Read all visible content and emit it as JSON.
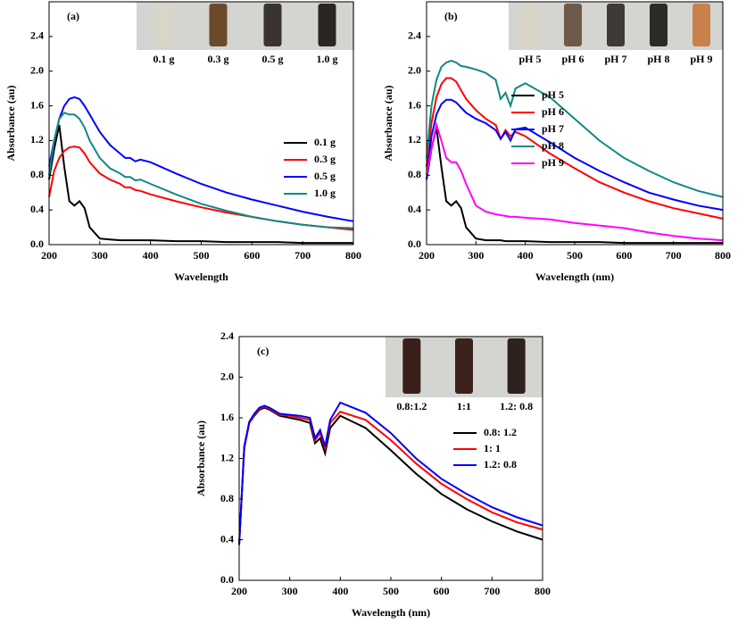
{
  "chart_data": [
    {
      "type": "line",
      "label": "(a)",
      "xlabel": "Wavelength",
      "ylabel": "Absorbance (au)",
      "xlim": [
        200,
        800
      ],
      "ylim": [
        0,
        2.8
      ],
      "xticks": [
        200,
        300,
        400,
        500,
        600,
        700,
        800
      ],
      "yticks": [
        {
          "value": 0,
          "label": "0.0"
        },
        0.4,
        0.8,
        1.2,
        1.6,
        {
          "value": 2,
          "label": "2.0"
        },
        2.4
      ],
      "legend_position": "right",
      "inset_labels": [
        "0.1 g",
        "0.3 g",
        "0.5 g",
        "1.0 g"
      ],
      "inset_colors": [
        "#d9d6c8",
        "#6b4a2a",
        "#3a3430",
        "#2a2624"
      ],
      "x": [
        200,
        210,
        220,
        230,
        240,
        250,
        260,
        270,
        280,
        300,
        320,
        340,
        350,
        360,
        370,
        380,
        400,
        450,
        500,
        550,
        600,
        650,
        700,
        750,
        800
      ],
      "series": [
        {
          "name": "0.1 g",
          "color": "#000000",
          "values": [
            0.75,
            1.1,
            1.38,
            0.9,
            0.5,
            0.45,
            0.5,
            0.42,
            0.2,
            0.07,
            0.06,
            0.05,
            0.05,
            0.05,
            0.05,
            0.05,
            0.05,
            0.04,
            0.04,
            0.03,
            0.03,
            0.03,
            0.02,
            0.02,
            0.02
          ]
        },
        {
          "name": "0.3 g",
          "color": "#ff0000",
          "values": [
            0.55,
            0.85,
            1.0,
            1.08,
            1.12,
            1.13,
            1.12,
            1.05,
            0.95,
            0.82,
            0.75,
            0.7,
            0.66,
            0.66,
            0.63,
            0.62,
            0.58,
            0.5,
            0.43,
            0.37,
            0.32,
            0.27,
            0.23,
            0.2,
            0.17
          ]
        },
        {
          "name": "0.5 g",
          "color": "#0000ff",
          "values": [
            0.9,
            1.2,
            1.45,
            1.6,
            1.68,
            1.7,
            1.68,
            1.6,
            1.5,
            1.3,
            1.15,
            1.05,
            1.0,
            1.0,
            0.96,
            0.98,
            0.95,
            0.82,
            0.7,
            0.6,
            0.52,
            0.45,
            0.38,
            0.32,
            0.27
          ]
        },
        {
          "name": "1.0 g",
          "color": "#0f8a80",
          "values": [
            0.8,
            1.2,
            1.45,
            1.52,
            1.5,
            1.5,
            1.45,
            1.35,
            1.2,
            1.0,
            0.88,
            0.82,
            0.78,
            0.78,
            0.74,
            0.75,
            0.7,
            0.58,
            0.47,
            0.39,
            0.32,
            0.27,
            0.23,
            0.2,
            0.19
          ]
        }
      ]
    },
    {
      "type": "line",
      "label": "(b)",
      "xlabel": "Wavelength (nm)",
      "ylabel": "Absorbance (au)",
      "xlim": [
        200,
        800
      ],
      "ylim": [
        0,
        2.8
      ],
      "xticks": [
        200,
        300,
        400,
        500,
        600,
        700,
        800
      ],
      "yticks": [
        {
          "value": 0,
          "label": "0.0"
        },
        0.4,
        0.8,
        1.2,
        1.6,
        {
          "value": 2,
          "label": "2.0"
        },
        2.4
      ],
      "legend_position": "right",
      "inset_labels": [
        "pH 5",
        "pH 6",
        "pH 7",
        "pH 8",
        "pH 9"
      ],
      "inset_colors": [
        "#d8d4c6",
        "#6e5a48",
        "#3e3a36",
        "#2c2a28",
        "#c8814a"
      ],
      "x": [
        200,
        210,
        220,
        230,
        240,
        250,
        260,
        270,
        280,
        300,
        320,
        340,
        350,
        360,
        370,
        380,
        400,
        450,
        500,
        550,
        600,
        650,
        700,
        750,
        800
      ],
      "series": [
        {
          "name": "pH 5",
          "color": "#000000",
          "values": [
            0.75,
            1.1,
            1.35,
            0.9,
            0.5,
            0.45,
            0.5,
            0.42,
            0.2,
            0.07,
            0.05,
            0.05,
            0.05,
            0.04,
            0.04,
            0.04,
            0.04,
            0.03,
            0.03,
            0.03,
            0.02,
            0.02,
            0.02,
            0.02,
            0.02
          ]
        },
        {
          "name": "pH 6",
          "color": "#ff0000",
          "values": [
            0.9,
            1.4,
            1.7,
            1.85,
            1.92,
            1.92,
            1.88,
            1.78,
            1.68,
            1.55,
            1.45,
            1.38,
            1.22,
            1.32,
            1.25,
            1.3,
            1.25,
            1.05,
            0.88,
            0.72,
            0.6,
            0.5,
            0.42,
            0.36,
            0.3
          ]
        },
        {
          "name": "pH 7",
          "color": "#0000ff",
          "values": [
            0.75,
            1.25,
            1.5,
            1.62,
            1.67,
            1.67,
            1.64,
            1.58,
            1.52,
            1.45,
            1.4,
            1.32,
            1.22,
            1.3,
            1.2,
            1.33,
            1.35,
            1.18,
            1.0,
            0.85,
            0.72,
            0.6,
            0.52,
            0.45,
            0.4
          ]
        },
        {
          "name": "pH 8",
          "color": "#0f8a80",
          "values": [
            1.0,
            1.6,
            1.9,
            2.05,
            2.1,
            2.12,
            2.1,
            2.06,
            2.05,
            2.02,
            1.98,
            1.9,
            1.68,
            1.75,
            1.6,
            1.8,
            1.86,
            1.7,
            1.45,
            1.2,
            1.0,
            0.85,
            0.72,
            0.62,
            0.55
          ]
        },
        {
          "name": "pH 9",
          "color": "#ff00ff",
          "values": [
            0.8,
            1.1,
            1.38,
            1.2,
            1.0,
            0.95,
            0.95,
            0.85,
            0.7,
            0.45,
            0.38,
            0.35,
            0.34,
            0.33,
            0.32,
            0.32,
            0.31,
            0.29,
            0.25,
            0.22,
            0.19,
            0.14,
            0.1,
            0.07,
            0.05
          ]
        }
      ]
    },
    {
      "type": "line",
      "label": "(c)",
      "xlabel": "Wavelength (nm)",
      "ylabel": "Absorbance (au)",
      "xlim": [
        200,
        800
      ],
      "ylim": [
        0,
        2.4
      ],
      "xticks": [
        200,
        300,
        400,
        500,
        600,
        700,
        800
      ],
      "yticks": [
        {
          "value": 0,
          "label": "0.0"
        },
        0.4,
        0.8,
        1.2,
        1.6,
        {
          "value": 2,
          "label": "2.0"
        },
        2.4
      ],
      "legend_position": "right",
      "inset_labels": [
        "0.8:1.2",
        "1:1",
        "1.2: 0.8"
      ],
      "inset_colors": [
        "#3a201a",
        "#3c221c",
        "#2e221e"
      ],
      "x": [
        200,
        210,
        220,
        230,
        240,
        250,
        260,
        270,
        280,
        300,
        320,
        340,
        350,
        360,
        370,
        380,
        400,
        450,
        500,
        550,
        600,
        650,
        700,
        750,
        800
      ],
      "series": [
        {
          "name": "0.8: 1.2",
          "color": "#000000",
          "values": [
            0.35,
            1.3,
            1.55,
            1.62,
            1.68,
            1.7,
            1.68,
            1.65,
            1.62,
            1.6,
            1.58,
            1.55,
            1.35,
            1.4,
            1.25,
            1.5,
            1.62,
            1.5,
            1.28,
            1.05,
            0.85,
            0.7,
            0.58,
            0.48,
            0.4
          ]
        },
        {
          "name": "1: 1",
          "color": "#ff0000",
          "values": [
            0.35,
            1.3,
            1.55,
            1.63,
            1.69,
            1.71,
            1.69,
            1.66,
            1.63,
            1.62,
            1.6,
            1.58,
            1.38,
            1.45,
            1.3,
            1.55,
            1.66,
            1.58,
            1.38,
            1.15,
            0.95,
            0.8,
            0.67,
            0.57,
            0.5
          ]
        },
        {
          "name": "1.2: 0.8",
          "color": "#0000ff",
          "values": [
            0.35,
            1.32,
            1.56,
            1.64,
            1.7,
            1.72,
            1.7,
            1.67,
            1.64,
            1.63,
            1.62,
            1.6,
            1.4,
            1.48,
            1.32,
            1.58,
            1.75,
            1.65,
            1.45,
            1.2,
            1.0,
            0.85,
            0.72,
            0.62,
            0.54
          ]
        }
      ]
    }
  ]
}
